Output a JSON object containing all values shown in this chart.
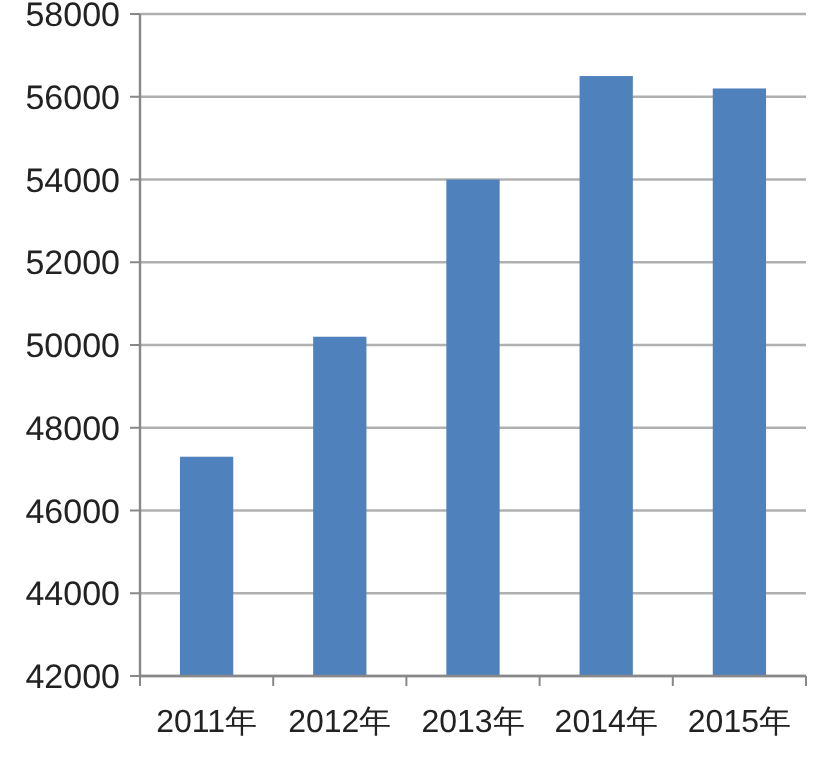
{
  "chart_data": {
    "type": "bar",
    "categories": [
      "2011年",
      "2012年",
      "2013年",
      "2014年",
      "2015年"
    ],
    "values": [
      47300,
      50200,
      54000,
      56500,
      56200
    ],
    "color": "#4f81bd",
    "ylim": [
      42000,
      58000
    ],
    "yticks": [
      42000,
      44000,
      46000,
      48000,
      50000,
      52000,
      54000,
      56000,
      58000
    ],
    "grid": "y"
  }
}
